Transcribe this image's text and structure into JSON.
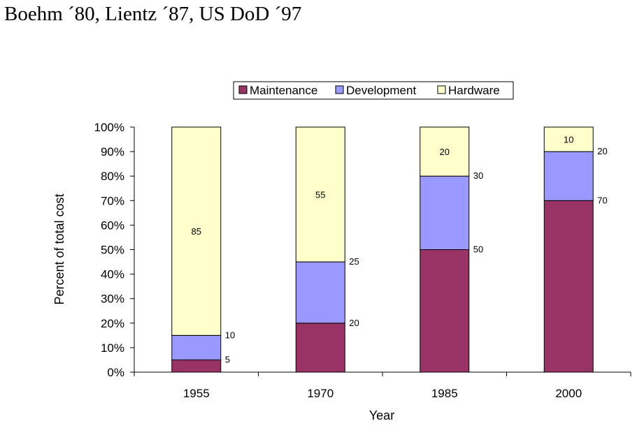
{
  "heading": "Boehm ´80, Lientz ´87, US DoD ´97",
  "chart_data": {
    "type": "bar",
    "stacked": true,
    "percent_stacked": true,
    "categories": [
      "1955",
      "1970",
      "1985",
      "2000"
    ],
    "series": [
      {
        "name": "Maintenance",
        "values": [
          5,
          20,
          50,
          70
        ],
        "color": "#993366"
      },
      {
        "name": "Development",
        "values": [
          10,
          25,
          30,
          20
        ],
        "color": "#9999ff"
      },
      {
        "name": "Hardware",
        "values": [
          85,
          55,
          20,
          10
        ],
        "color": "#ffffcc"
      }
    ],
    "xlabel": "Year",
    "ylabel": "Percent of total cost",
    "ylim": [
      0,
      100
    ],
    "yticks": [
      "0%",
      "10%",
      "20%",
      "30%",
      "40%",
      "50%",
      "60%",
      "70%",
      "80%",
      "90%",
      "100%"
    ],
    "grid": false,
    "legend_position": "top"
  }
}
